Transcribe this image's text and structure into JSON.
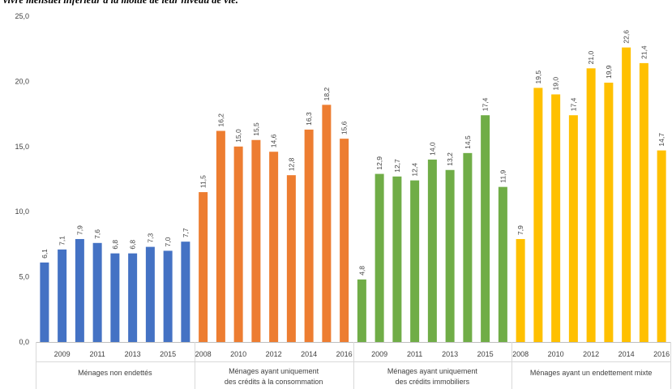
{
  "caption": "vivre mensuel inférieur à la moitié de leur niveau de vie.",
  "chart_data": {
    "type": "bar",
    "yticks": [
      "0,0",
      "5,0",
      "10,0",
      "15,0",
      "20,0",
      "25,0"
    ],
    "ylim": [
      0,
      25
    ],
    "grid": false,
    "legend": "none",
    "decimal_separator": ",",
    "groups": [
      {
        "name": "Ménages non endettés",
        "name_lines": [
          "Ménages non endettés"
        ],
        "color": "#4472C4",
        "years": [
          2008,
          2009,
          2010,
          2011,
          2012,
          2013,
          2014,
          2015,
          2016
        ],
        "year_labels": [
          "",
          "2009",
          "",
          "2011",
          "",
          "2013",
          "",
          "2015",
          ""
        ],
        "values": [
          6.1,
          7.1,
          7.9,
          7.6,
          6.8,
          6.8,
          7.3,
          7.0,
          7.7
        ],
        "value_labels": [
          "6,1",
          "7,1",
          "7,9",
          "7,6",
          "6,8",
          "6,8",
          "7,3",
          "7,0",
          "7,7"
        ]
      },
      {
        "name": "Ménages ayant uniquement des crédits à la consommation",
        "name_lines": [
          "Ménages ayant uniquement",
          "des crédits à la consommation"
        ],
        "color": "#ED7D31",
        "years": [
          2008,
          2009,
          2010,
          2011,
          2012,
          2013,
          2014,
          2015,
          2016
        ],
        "year_labels": [
          "2008",
          "",
          "2010",
          "",
          "2012",
          "",
          "2014",
          "",
          "2016"
        ],
        "values": [
          11.5,
          16.2,
          15.0,
          15.5,
          14.6,
          12.8,
          16.3,
          18.2,
          15.6
        ],
        "value_labels": [
          "11,5",
          "16,2",
          "15,0",
          "15,5",
          "14,6",
          "12,8",
          "16,3",
          "18,2",
          "15,6"
        ]
      },
      {
        "name": "Ménages ayant uniquement des crédits immobiliers",
        "name_lines": [
          "Ménages ayant uniquement",
          "des crédits immobiliers"
        ],
        "color": "#70AD47",
        "years": [
          2008,
          2009,
          2010,
          2011,
          2012,
          2013,
          2014,
          2015,
          2016
        ],
        "year_labels": [
          "",
          "2009",
          "",
          "2011",
          "",
          "2013",
          "",
          "2015",
          ""
        ],
        "values": [
          4.8,
          12.9,
          12.7,
          12.4,
          14.0,
          13.2,
          14.5,
          17.4,
          11.9
        ],
        "value_labels": [
          "4,8",
          "12,9",
          "12,7",
          "12,4",
          "14,0",
          "13,2",
          "14,5",
          "17,4",
          "11,9"
        ]
      },
      {
        "name": "Ménages ayant un endettement mixte",
        "name_lines": [
          "Ménages ayant un endettement mixte"
        ],
        "color": "#FFC000",
        "years": [
          2008,
          2009,
          2010,
          2011,
          2012,
          2013,
          2014,
          2015,
          2016
        ],
        "year_labels": [
          "2008",
          "",
          "2010",
          "",
          "2012",
          "",
          "2014",
          "",
          "2016"
        ],
        "values": [
          7.9,
          19.5,
          19.0,
          17.4,
          21.0,
          19.9,
          22.6,
          21.4,
          14.7
        ],
        "value_labels": [
          "7,9",
          "19,5",
          "19,0",
          "17,4",
          "21,0",
          "19,9",
          "22,6",
          "21,4",
          "14,7"
        ]
      }
    ]
  }
}
